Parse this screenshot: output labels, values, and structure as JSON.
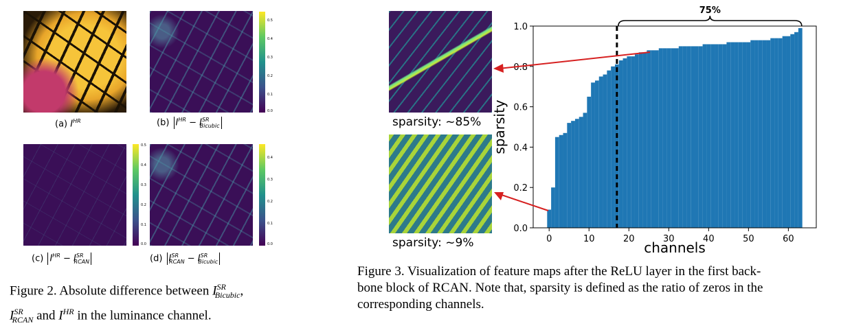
{
  "figure2": {
    "panels": [
      {
        "prefix": "(a) ",
        "colorbar_ticks": []
      },
      {
        "prefix": "(b) ",
        "colorbar_ticks": [
          "0.5",
          "0.4",
          "0.3",
          "0.2",
          "0.1",
          "0.0"
        ]
      },
      {
        "prefix": "(c) ",
        "colorbar_ticks": [
          "0.5",
          "0.4",
          "0.3",
          "0.2",
          "0.1",
          "0.0"
        ]
      },
      {
        "prefix": "(d) ",
        "colorbar_ticks": [
          "0.4",
          "0.3",
          "0.2",
          "0.1",
          "0.0"
        ]
      }
    ],
    "caption": {
      "line1": "Figure 2. Absolute difference between",
      "line2_and": "and",
      "line2_tail": "in the luminance channel."
    }
  },
  "figure3": {
    "sparsity_top": "sparsity: ~85%",
    "sparsity_bottom": "sparsity: ~9%",
    "caption": {
      "line1": "Figure 3. Visualization of feature maps after the ReLU layer in the first back-",
      "line2": "bone block of RCAN. Note that, sparsity is defined as the ratio of zeros in the",
      "line3": "corresponding channels."
    }
  },
  "chart_data": {
    "type": "bar",
    "xlabel": "channels",
    "ylabel": "sparsity",
    "xlim": [
      -4,
      67
    ],
    "ylim": [
      0,
      1.0
    ],
    "xticks": [
      0,
      10,
      20,
      30,
      40,
      50,
      60
    ],
    "yticks": [
      0.0,
      0.2,
      0.4,
      0.6,
      0.8,
      1.0
    ],
    "xtick_labels": [
      "0",
      "10",
      "20",
      "30",
      "40",
      "50",
      "60"
    ],
    "ytick_labels": [
      "0.0",
      "0.2",
      "0.4",
      "0.6",
      "0.8",
      "1.0"
    ],
    "bar_color": "#1f77b4",
    "threshold_x": 17,
    "annotation": "75%",
    "values": [
      0.09,
      0.2,
      0.45,
      0.46,
      0.47,
      0.52,
      0.53,
      0.54,
      0.55,
      0.57,
      0.65,
      0.72,
      0.73,
      0.75,
      0.76,
      0.78,
      0.8,
      0.81,
      0.83,
      0.84,
      0.85,
      0.85,
      0.86,
      0.87,
      0.87,
      0.88,
      0.88,
      0.88,
      0.89,
      0.89,
      0.89,
      0.89,
      0.89,
      0.9,
      0.9,
      0.9,
      0.9,
      0.9,
      0.9,
      0.91,
      0.91,
      0.91,
      0.91,
      0.91,
      0.91,
      0.92,
      0.92,
      0.92,
      0.92,
      0.92,
      0.92,
      0.93,
      0.93,
      0.93,
      0.93,
      0.93,
      0.94,
      0.94,
      0.94,
      0.95,
      0.95,
      0.96,
      0.97,
      0.99
    ]
  }
}
